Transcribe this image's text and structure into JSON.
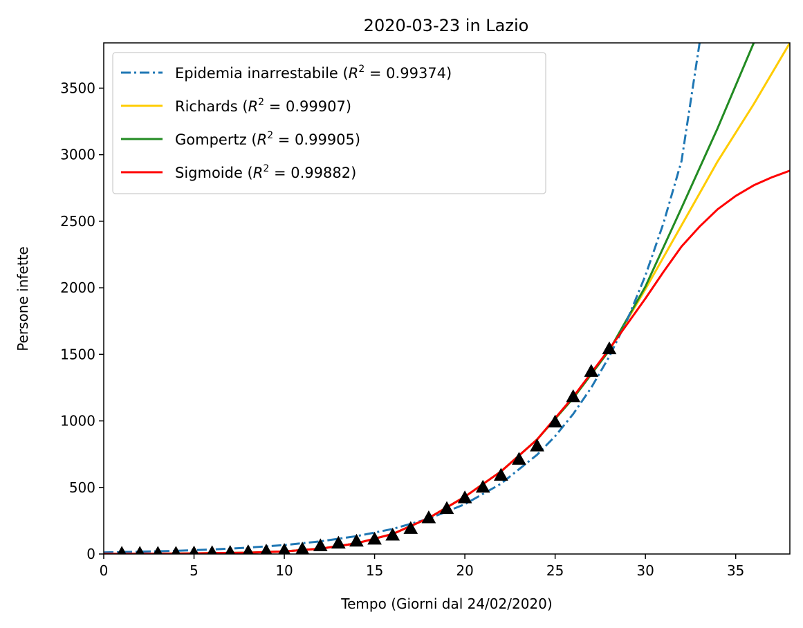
{
  "chart_data": {
    "type": "line",
    "title": "2020-03-23 in Lazio",
    "xlabel": "Tempo (Giorni dal 24/02/2020)",
    "ylabel": "Persone infette",
    "xlim": [
      0,
      38
    ],
    "ylim": [
      0,
      3840
    ],
    "xticks": [
      0,
      5,
      10,
      15,
      20,
      25,
      30,
      35
    ],
    "yticks": [
      0,
      500,
      1000,
      1500,
      2000,
      2500,
      3000,
      3500
    ],
    "grid": false,
    "legend_position": "top-left",
    "series": [
      {
        "name": "Epidemia inarrestabile",
        "r2": "0.99374",
        "color": "#1f77b4",
        "style": "dashdot",
        "x": [
          0,
          2,
          4,
          6,
          8,
          10,
          12,
          14,
          16,
          18,
          20,
          22,
          24,
          25,
          26,
          27,
          28,
          29,
          30,
          31,
          32,
          33
        ],
        "y": [
          12,
          17,
          24,
          34,
          48,
          67,
          95,
          134,
          188,
          265,
          374,
          528,
          745,
          885,
          1051,
          1249,
          1483,
          1762,
          2093,
          2486,
          2953,
          3840
        ]
      },
      {
        "name": "Richards",
        "r2": "0.99907",
        "color": "#ffcc00",
        "style": "solid",
        "x": [
          0,
          4,
          8,
          10,
          12,
          14,
          16,
          18,
          20,
          22,
          24,
          26,
          28,
          30,
          32,
          34,
          36,
          38
        ],
        "y": [
          1,
          3,
          10,
          20,
          40,
          80,
          150,
          270,
          430,
          620,
          860,
          1170,
          1530,
          1990,
          2470,
          2950,
          3380,
          3840
        ]
      },
      {
        "name": "Gompertz",
        "r2": "0.99905",
        "color": "#228b22",
        "style": "solid",
        "x": [
          0,
          4,
          8,
          10,
          12,
          14,
          16,
          18,
          20,
          22,
          24,
          26,
          28,
          30,
          32,
          34,
          36
        ],
        "y": [
          1,
          3,
          10,
          20,
          40,
          80,
          150,
          270,
          430,
          620,
          860,
          1170,
          1530,
          2010,
          2600,
          3200,
          3840
        ]
      },
      {
        "name": "Sigmoide",
        "r2": "0.99882",
        "color": "#ff0000",
        "style": "solid",
        "x": [
          0,
          4,
          8,
          10,
          12,
          14,
          16,
          18,
          20,
          22,
          24,
          26,
          28,
          29,
          30,
          31,
          32,
          33,
          34,
          35,
          36,
          37,
          38
        ],
        "y": [
          1,
          3,
          10,
          20,
          40,
          80,
          150,
          270,
          430,
          620,
          860,
          1180,
          1540,
          1730,
          1920,
          2120,
          2310,
          2460,
          2590,
          2690,
          2770,
          2830,
          2880
        ]
      }
    ],
    "data_points": {
      "marker": "triangle",
      "color": "#000000",
      "x": [
        1,
        2,
        3,
        4,
        5,
        6,
        7,
        8,
        9,
        10,
        11,
        12,
        13,
        14,
        15,
        16,
        17,
        18,
        19,
        20,
        21,
        22,
        23,
        24,
        25,
        26,
        27,
        28
      ],
      "y": [
        3,
        3,
        3,
        3,
        6,
        8,
        10,
        15,
        20,
        25,
        35,
        60,
        80,
        95,
        110,
        140,
        190,
        270,
        340,
        420,
        500,
        590,
        710,
        810,
        990,
        1180,
        1370,
        1540
      ]
    }
  }
}
